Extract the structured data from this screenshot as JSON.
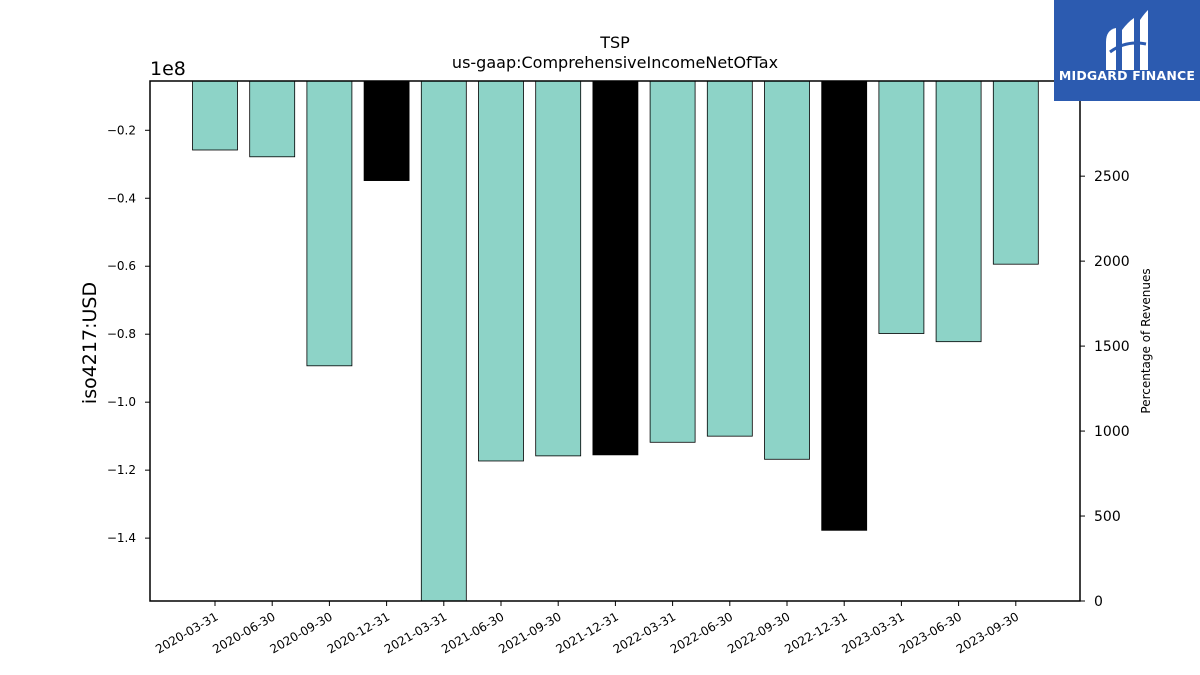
{
  "chart_data": {
    "type": "bar",
    "title": "TSP",
    "subtitle": "us-gaap:ComprehensiveIncomeNetOfTax",
    "ylabel": "iso4217:USD",
    "y_offset_label": "1e8",
    "y2label": "Percentage of Revenues",
    "categories": [
      "2020-03-31",
      "2020-06-30",
      "2020-09-30",
      "2020-12-31",
      "2021-03-31",
      "2021-06-30",
      "2021-09-30",
      "2021-12-31",
      "2022-03-31",
      "2022-06-30",
      "2022-09-30",
      "2022-12-31",
      "2023-03-31",
      "2023-06-30",
      "2023-09-30"
    ],
    "values": [
      -25800000,
      -27800000,
      -89300000,
      -34800000,
      -158500000,
      -117300000,
      -115800000,
      -115500000,
      -111800000,
      -110000000,
      -116800000,
      -137700000,
      -79800000,
      -82200000,
      -59400000
    ],
    "highlight": [
      false,
      false,
      false,
      true,
      false,
      false,
      false,
      true,
      false,
      false,
      false,
      true,
      false,
      false,
      false
    ],
    "bar_color": "#8dd3c7",
    "highlight_color": "#000000",
    "ylim": [
      -158500000,
      -5500000
    ],
    "yticks": [
      -20000000,
      -40000000,
      -60000000,
      -80000000,
      -100000000,
      -120000000,
      -140000000
    ],
    "ytick_labels": [
      "−0.2",
      "−0.4",
      "−0.6",
      "−0.8",
      "−1.0",
      "−1.2",
      "−1.4"
    ],
    "y2lim": [
      0,
      3060
    ],
    "y2ticks": [
      0,
      500,
      1000,
      1500,
      2000,
      2500
    ],
    "y2tick_labels": [
      "0",
      "500",
      "1000",
      "1500",
      "2000",
      "2500"
    ],
    "grid": false
  },
  "logo": {
    "text": "MIDGARD FINANCE"
  }
}
